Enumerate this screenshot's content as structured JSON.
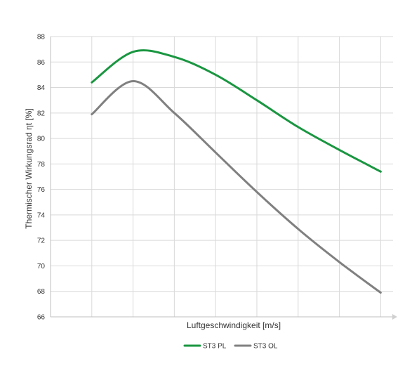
{
  "chart_data": {
    "type": "line",
    "title": "",
    "xlabel": "Luftgeschwindigkeit [m/s]",
    "ylabel": "Thermischer Wirkungsrad ηt [%]",
    "ylim": [
      66,
      88
    ],
    "yticks": [
      66,
      68,
      70,
      72,
      74,
      76,
      78,
      80,
      82,
      84,
      86,
      88
    ],
    "xlim": [
      0,
      8.3
    ],
    "x": [
      1,
      2,
      3,
      4,
      5,
      6,
      7,
      8
    ],
    "grid": true,
    "legend_position": "bottom-center",
    "series": [
      {
        "name": "ST3 PL",
        "color": "#1a9641",
        "values": [
          84.4,
          86.8,
          86.4,
          85.0,
          83.0,
          80.9,
          79.1,
          77.4
        ]
      },
      {
        "name": "ST3 OL",
        "color": "#808080",
        "values": [
          81.9,
          84.5,
          82.0,
          78.9,
          75.8,
          72.9,
          70.3,
          67.9
        ]
      }
    ]
  }
}
